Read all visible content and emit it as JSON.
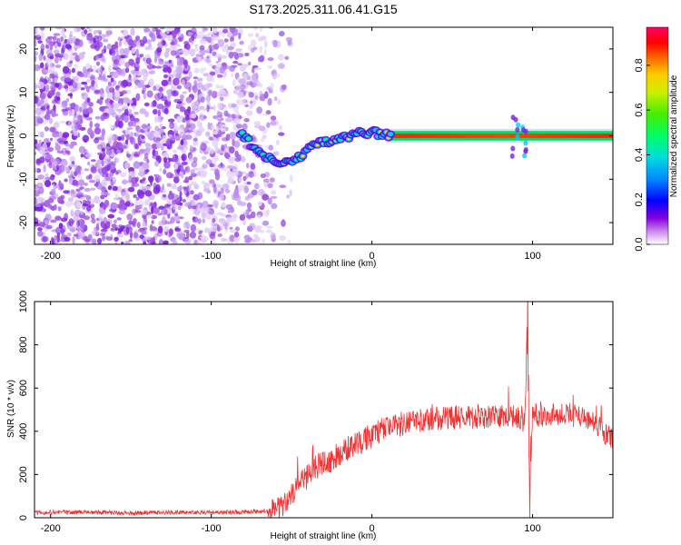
{
  "title": "S173.2025.311.06.41.G15",
  "chart_data": [
    {
      "type": "heatmap",
      "xlabel": "Height of straight line (km)",
      "ylabel": "Frequency (Hz)",
      "xlim": [
        -210,
        150
      ],
      "ylim": [
        -25,
        25
      ],
      "xticks": [
        -200,
        -100,
        0,
        100
      ],
      "yticks": [
        -20,
        -10,
        0,
        10,
        20
      ],
      "colorbar": {
        "label": "Normalized spectral amplitude",
        "range": [
          0,
          0.97
        ],
        "ticks": [
          0.0,
          0.2,
          0.4,
          0.6,
          0.8
        ]
      },
      "features": {
        "noise_region_x": [
          -210,
          -60
        ],
        "carrier_track": [
          [
            -80,
            0
          ],
          [
            -75,
            -2
          ],
          [
            -65,
            -5
          ],
          [
            -55,
            -6
          ],
          [
            -45,
            -5
          ],
          [
            -38,
            -2
          ],
          [
            -30,
            -1.5
          ],
          [
            -20,
            -0.8
          ],
          [
            -10,
            0.5
          ],
          [
            0,
            0.8
          ],
          [
            10,
            0.3
          ],
          [
            20,
            0
          ],
          [
            150,
            0
          ]
        ]
      }
    },
    {
      "type": "line",
      "xlabel": "Height of straight line (km)",
      "ylabel": "SNR (10 * v/v)",
      "xlim": [
        -210,
        150
      ],
      "ylim": [
        0,
        1000
      ],
      "xticks": [
        -200,
        -100,
        0,
        100
      ],
      "yticks": [
        0,
        200,
        400,
        600,
        800,
        1000
      ],
      "series": [
        {
          "color": "#ee3333",
          "x": [
            -210,
            -180,
            -150,
            -120,
            -90,
            -70,
            -60,
            -55,
            -50,
            -45,
            -40,
            -35,
            -30,
            -25,
            -20,
            -15,
            -10,
            -5,
            0,
            5,
            10,
            15,
            20,
            25,
            30,
            35,
            40,
            45,
            50,
            60,
            70,
            80,
            90,
            95,
            97,
            98,
            100,
            105,
            110,
            120,
            130,
            140,
            145,
            150
          ],
          "values": [
            25,
            25,
            22,
            25,
            25,
            30,
            40,
            70,
            110,
            150,
            190,
            230,
            250,
            270,
            300,
            320,
            340,
            360,
            380,
            400,
            410,
            425,
            435,
            445,
            450,
            455,
            460,
            460,
            465,
            465,
            465,
            470,
            470,
            430,
            950,
            60,
            470,
            475,
            475,
            480,
            470,
            440,
            390,
            360
          ]
        }
      ]
    }
  ]
}
